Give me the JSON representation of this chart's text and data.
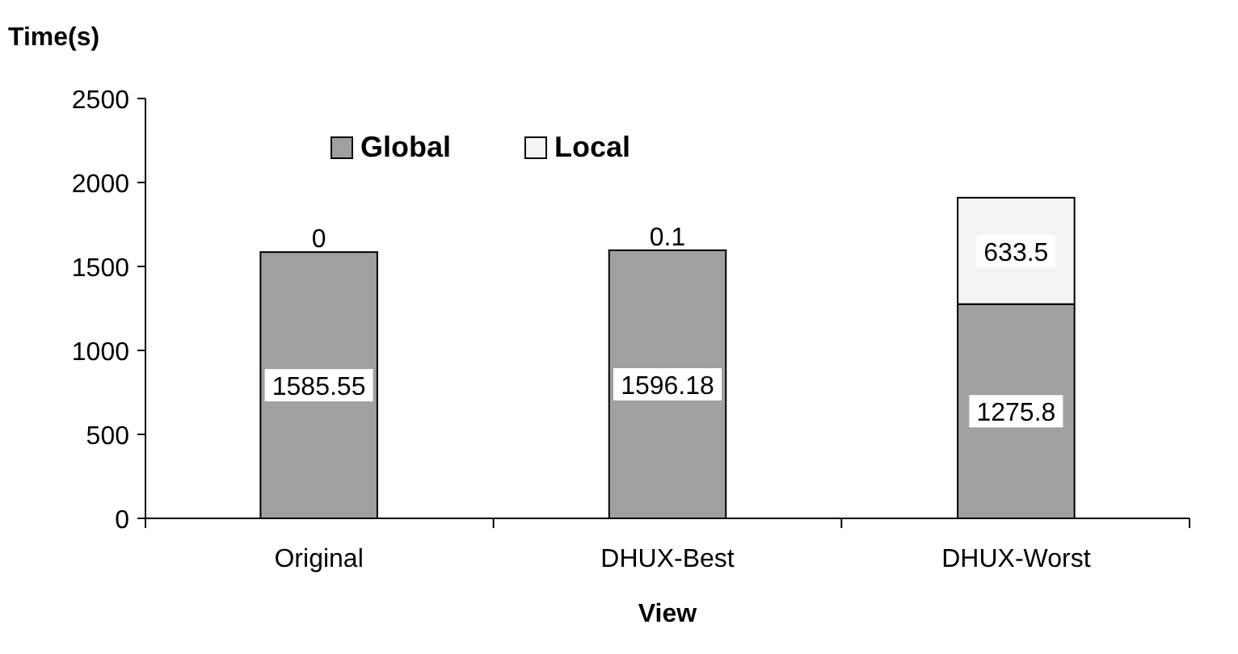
{
  "chart_data": {
    "type": "bar",
    "title": "Time(s)",
    "xlabel": "View",
    "categories": [
      "Original",
      "DHUX-Best",
      "DHUX-Worst"
    ],
    "stacked": true,
    "series": [
      {
        "name": "Global",
        "color": "#a0a0a0",
        "values": [
          1585.55,
          1596.18,
          1275.8
        ]
      },
      {
        "name": "Local",
        "color": "#f4f4f4",
        "values": [
          0,
          0.1,
          633.5
        ]
      }
    ],
    "ylim": [
      0,
      2500
    ],
    "yticks": [
      0,
      500,
      1000,
      1500,
      2000,
      2500
    ],
    "data_labels": true,
    "legend": "top left",
    "grid": false
  }
}
